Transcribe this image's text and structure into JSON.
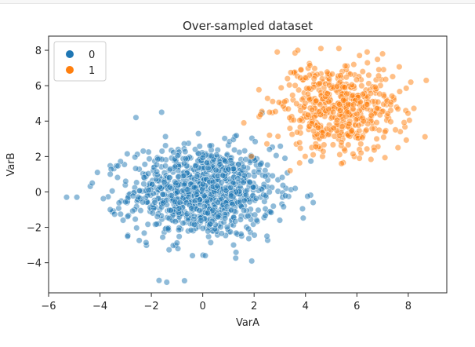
{
  "chart_data": {
    "type": "scatter",
    "title": "Over-sampled dataset",
    "xlabel": "VarA",
    "ylabel": "VarB",
    "xlim": [
      -6,
      9.5
    ],
    "ylim": [
      -5.7,
      8.8
    ],
    "xticks": [
      -6,
      -4,
      -2,
      0,
      2,
      4,
      6,
      8
    ],
    "yticks": [
      -4,
      -2,
      0,
      2,
      4,
      6,
      8
    ],
    "grid": false,
    "legend_placement": "top-left",
    "series": [
      {
        "name": "0",
        "color": "#1f77b4",
        "alpha": 0.5,
        "cluster": {
          "center": [
            0,
            0
          ],
          "spread": [
            1.4,
            1.3
          ],
          "count": 1000
        },
        "extremes": [
          [
            -5.3,
            -0.3
          ],
          [
            -4.9,
            -0.3
          ],
          [
            -4.3,
            0.5
          ],
          [
            -4.1,
            1.1
          ],
          [
            -3.6,
            1.0
          ],
          [
            -3.6,
            -1.0
          ],
          [
            -3.1,
            -1.6
          ],
          [
            -2.6,
            4.2
          ],
          [
            -1.6,
            4.5
          ],
          [
            -1.7,
            -5.0
          ],
          [
            -1.4,
            -5.1
          ],
          [
            -0.4,
            -3.6
          ],
          [
            0.1,
            -3.6
          ],
          [
            1.2,
            -3.0
          ],
          [
            2.5,
            -2.5
          ],
          [
            3.0,
            -1.6
          ],
          [
            4.3,
            -0.6
          ],
          [
            3.6,
            0.2
          ],
          [
            3.2,
            1.9
          ],
          [
            2.6,
            2.4
          ]
        ]
      },
      {
        "name": "1",
        "color": "#ff7f0e",
        "alpha": 0.5,
        "cluster": {
          "center": [
            5.2,
            4.7
          ],
          "spread": [
            1.2,
            1.3
          ],
          "count": 520
        },
        "extremes": [
          [
            1.6,
            3.9
          ],
          [
            1.9,
            2.0
          ],
          [
            2.6,
            4.5
          ],
          [
            2.6,
            3.2
          ],
          [
            3.4,
            1.2
          ],
          [
            2.9,
            7.9
          ],
          [
            3.7,
            8.0
          ],
          [
            4.6,
            8.1
          ],
          [
            5.3,
            8.1
          ],
          [
            6.4,
            7.9
          ],
          [
            7.0,
            7.8
          ],
          [
            8.1,
            6.2
          ],
          [
            8.7,
            6.3
          ],
          [
            7.6,
            2.5
          ],
          [
            6.1,
            1.9
          ],
          [
            5.4,
            1.6
          ],
          [
            4.3,
            2.1
          ],
          [
            3.3,
            6.4
          ]
        ]
      }
    ],
    "legend": {
      "entries": [
        {
          "label": "0",
          "color": "#1f77b4"
        },
        {
          "label": "1",
          "color": "#ff7f0e"
        }
      ]
    }
  }
}
